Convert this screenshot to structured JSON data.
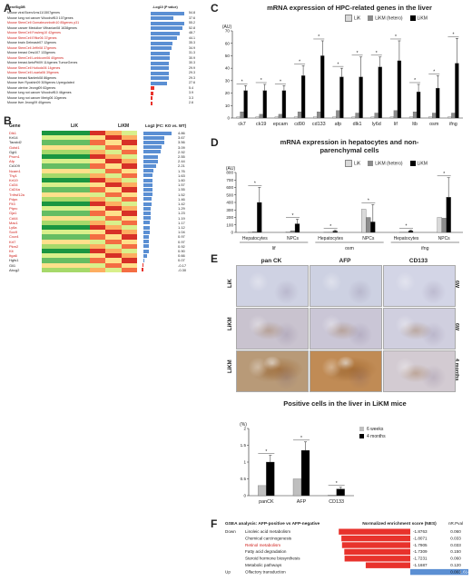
{
  "panels": {
    "a": "A",
    "b": "B",
    "c": "C",
    "d": "D",
    "e": "E",
    "f": "F"
  },
  "panelA": {
    "col_gene": "GeneSigDB",
    "col_p": "-Log10 (P value)",
    "rows": [
      {
        "label": "Mouse viral Bcerv1ms11/1507genes",
        "value": 54.8,
        "red": false
      },
      {
        "label": "Mouse lung not cancer Woodruff10 107genes",
        "value": 37.6,
        "red": false
      },
      {
        "label": "Mouse StemCell Gomabrunnboth10 85genes p31",
        "value": 55.2,
        "red": true
      },
      {
        "label": "Mouse cancer Medulloe Vithanian08 1638genes",
        "value": 52.8,
        "red": false
      },
      {
        "label": "Mouse StemCell Fowlerg10 42genes",
        "value": 48.7,
        "red": true
      },
      {
        "label": "Mouse StemCell Efflor06 37genes",
        "value": 44.1,
        "red": true
      },
      {
        "label": "Mouse brain Delmastr07 12genes",
        "value": 35.3,
        "red": false
      },
      {
        "label": "Mouse StemCell Jeffir08 37genes",
        "value": 34.9,
        "red": true
      },
      {
        "label": "Mouse breast Oew107 133genes",
        "value": 31.3,
        "red": false
      },
      {
        "label": "Mouse StemCell Lonbicorn06 40genes",
        "value": 30.9,
        "red": true
      },
      {
        "label": "Mouse breast AetoPiti09 114genes TumorGenes",
        "value": 30.3,
        "red": false
      },
      {
        "label": "Mouse StemCell Hutiodc06 14genes",
        "value": 29.9,
        "red": true
      },
      {
        "label": "Mouse StemCell Lwarla06 39genes",
        "value": 29.3,
        "red": true
      },
      {
        "label": "Mouse breast Nanlerk08 86genes",
        "value": 29.3,
        "red": false
      },
      {
        "label": "Mouse liver Ryoshin09 309genes Upregulated",
        "value": 27.6,
        "red": false
      },
      {
        "label": "Mouse uterine Jeongl09 82genes",
        "value": 5.4,
        "red": false
      },
      {
        "label": "Mouse lung not cancer Woodruff10 46genes",
        "value": 3.9,
        "red": false
      },
      {
        "label": "Mouse lung not cancer Merig06 10genes",
        "value": 3.3,
        "red": false
      },
      {
        "label": "Mouse liver Jeong09 40genes",
        "value": 2.6,
        "red": false
      }
    ]
  },
  "panelB": {
    "col_gene": "Gene",
    "col_lik": "LiK",
    "col_likm": "LiKM",
    "col_fc": "Log2 (FC: KO vs. WT)",
    "genes": [
      {
        "name": "Dlk1",
        "fc": 4.86,
        "red": true
      },
      {
        "name": "Krt14",
        "fc": 3.67,
        "red": false
      },
      {
        "name": "Tacstd2",
        "fc": 3.56,
        "red": false
      },
      {
        "name": "Golst1",
        "fc": 3.09,
        "red": true
      },
      {
        "name": "Ggt1",
        "fc": 2.92,
        "red": false
      },
      {
        "name": "Prom1",
        "fc": 2.55,
        "red": true
      },
      {
        "name": "Afp",
        "fc": 2.44,
        "red": true
      },
      {
        "name": "Cd109",
        "fc": 2.21,
        "red": false
      },
      {
        "name": "Ncam1",
        "fc": 1.76,
        "red": true
      },
      {
        "name": "Thy1",
        "fc": 1.63,
        "red": true
      },
      {
        "name": "Krt19",
        "fc": 1.6,
        "red": true
      },
      {
        "name": "Cd34",
        "fc": 1.57,
        "red": true
      },
      {
        "name": "Cd24a",
        "fc": 1.55,
        "red": true
      },
      {
        "name": "Tnfrsf12a",
        "fc": 1.52,
        "red": true
      },
      {
        "name": "Pdpn",
        "fc": 1.46,
        "red": true
      },
      {
        "name": "Flt3",
        "fc": 1.42,
        "red": true
      },
      {
        "name": "Ptprc",
        "fc": 1.29,
        "red": true
      },
      {
        "name": "Gja1",
        "fc": 1.23,
        "red": true
      },
      {
        "name": "Cd44",
        "fc": 1.19,
        "red": true
      },
      {
        "name": "Mac1",
        "fc": 1.17,
        "red": true
      },
      {
        "name": "Ly6a",
        "fc": 1.12,
        "red": true
      },
      {
        "name": "Sox9",
        "fc": 1.04,
        "red": true
      },
      {
        "name": "Cxcr4",
        "fc": 0.97,
        "red": true
      },
      {
        "name": "Krt7",
        "fc": 0.97,
        "red": true
      },
      {
        "name": "Pkm2",
        "fc": 0.92,
        "red": true
      },
      {
        "name": "Kit",
        "fc": 0.9,
        "red": true
      },
      {
        "name": "Itga6",
        "fc": 0.66,
        "red": true
      },
      {
        "name": "Hgfs1",
        "fc": 0.07,
        "red": false
      },
      {
        "name": "Gli1",
        "fc": -0.17,
        "red": false
      },
      {
        "name": "Abcg2",
        "fc": -0.3,
        "red": false
      }
    ]
  },
  "panelE": {
    "cols": [
      "pan CK",
      "AFP",
      "CD133"
    ],
    "rows": [
      {
        "label": "LiK",
        "time": "6W"
      },
      {
        "label": "LiKM",
        "time": "6W"
      },
      {
        "label": "LiKM",
        "time": "4 months"
      }
    ]
  },
  "colors": {
    "lik": "#d9d9d9",
    "likm_het": "#8c8c8c",
    "likm": "#000000",
    "bar_blue": "#5b8fd3",
    "bar_red": "#e8322c",
    "week6": "#bfbfbf",
    "month4": "#000000"
  },
  "chart_data": [
    {
      "id": "C",
      "type": "bar",
      "title": "mRNA expression of HPC-related genes in the liver",
      "ylabel": "(AU)",
      "ylim": [
        0,
        70
      ],
      "yticks": [
        0,
        10,
        20,
        30,
        40,
        50,
        60,
        70
      ],
      "legend": [
        "LiK",
        "LiKM (hetero)",
        "LiKM"
      ],
      "categories": [
        "ck7",
        "ck19",
        "epcam",
        "cd90",
        "cd133",
        "afp",
        "dlk1",
        "ly6d",
        "lif",
        "ltb",
        "osm",
        "ifng"
      ],
      "series": [
        {
          "name": "LiK",
          "values": [
            1,
            1,
            1,
            1,
            1,
            1,
            1,
            1,
            1,
            1,
            1,
            1
          ]
        },
        {
          "name": "LiKM (hetero)",
          "values": [
            5,
            3,
            3,
            5,
            5,
            6,
            4,
            4,
            6,
            5,
            4,
            4
          ]
        },
        {
          "name": "LiKM",
          "values": [
            22,
            22,
            22,
            34,
            50,
            33,
            33,
            41,
            46,
            21,
            24,
            44
          ]
        }
      ],
      "errors": [
        4,
        5,
        4,
        8,
        12,
        7,
        16,
        8,
        16,
        6,
        10,
        20
      ]
    },
    {
      "id": "D",
      "type": "bar",
      "title": "mRNA expression in hepatocytes and non-parenchymal cells",
      "ylabel": "(AU)",
      "ylim": [
        0,
        800
      ],
      "yticks": [
        0,
        100,
        200,
        300,
        400,
        500,
        600,
        700,
        800
      ],
      "legend": [
        "LiK",
        "LiKM (hetero)",
        "LiKM"
      ],
      "categories": [
        "Hepatocytes",
        "NPCs",
        "Hepatocytes",
        "NPCs",
        "Hepatocytes",
        "NPCs"
      ],
      "groups": [
        "lif",
        "osm",
        "ifng"
      ],
      "series": [
        {
          "name": "LiK",
          "values": [
            2,
            8,
            3,
            310,
            3,
            200
          ]
        },
        {
          "name": "LiKM (hetero)",
          "values": [
            10,
            22,
            4,
            200,
            4,
            190
          ]
        },
        {
          "name": "LiKM",
          "values": [
            400,
            115,
            18,
            140,
            20,
            470
          ]
        }
      ],
      "errors": [
        200,
        60,
        10,
        230,
        10,
        260
      ]
    },
    {
      "id": "E-bottom",
      "type": "bar",
      "title": "Positive cells in the liver in LiKM mice",
      "ylabel": "(%)",
      "ylim": [
        0,
        2
      ],
      "yticks": [
        0,
        0.5,
        1,
        1.5,
        2
      ],
      "legend": [
        "6 weeks",
        "4 months"
      ],
      "categories": [
        "panCK",
        "AFP",
        "CD133"
      ],
      "series": [
        {
          "name": "6 weeks",
          "values": [
            0.3,
            0.5,
            0.02
          ]
        },
        {
          "name": "4 months",
          "values": [
            1.0,
            1.35,
            0.2
          ]
        }
      ],
      "errors": [
        0.2,
        0.25,
        0.05
      ]
    },
    {
      "id": "F",
      "type": "bar",
      "title": "GSEA analysis: AFP-positive vs AFP-negative",
      "xlabel": "Normalized enrichment score (NES)",
      "col_p": "nR.Pval",
      "direction_down": "Down",
      "direction_up": "Up",
      "categories": [
        "Linoleic acid metabolism",
        "Chemical carcinogenesis",
        "Retinol metabolism",
        "Fatty acid degradation",
        "Steroid hormone biosynthesis",
        "Metabolic pathways",
        "Olfactory transduction"
      ],
      "values": [
        -1.8763,
        -1.8071,
        -1.7905,
        -1.7309,
        -1.7231,
        -1.1687,
        1.614
      ],
      "value_labels": [
        "-1.8763",
        "-1.8071",
        "-1.7905",
        "-1.7309",
        "-1.7231",
        "-1.1687",
        "1.614"
      ],
      "pvals": [
        "0.060",
        "0.033",
        "0.033",
        "0.150",
        "0.060",
        "0.120",
        "0.003"
      ],
      "red_label": [
        false,
        false,
        true,
        false,
        false,
        false,
        false
      ]
    }
  ]
}
